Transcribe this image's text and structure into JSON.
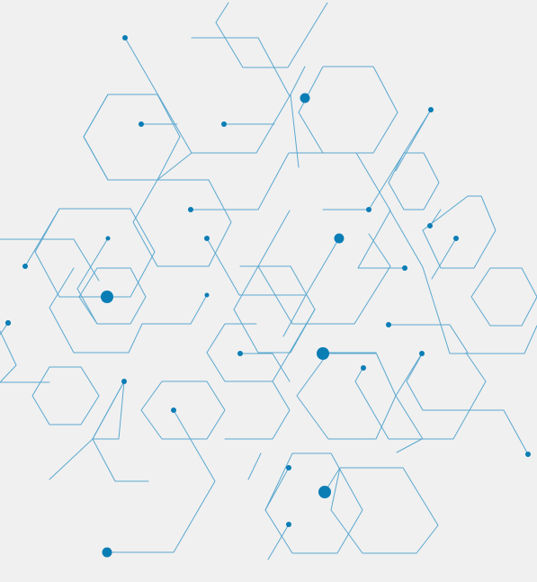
{
  "colors": {
    "background": "#f0f0f0",
    "line": "#5ba8cf",
    "node": "#0a7db5"
  },
  "graphic": {
    "subject": "abstract-hexagon-network",
    "hexagon_outline_count": 22,
    "connector_line_count": 24,
    "node_dot_count": 30
  }
}
